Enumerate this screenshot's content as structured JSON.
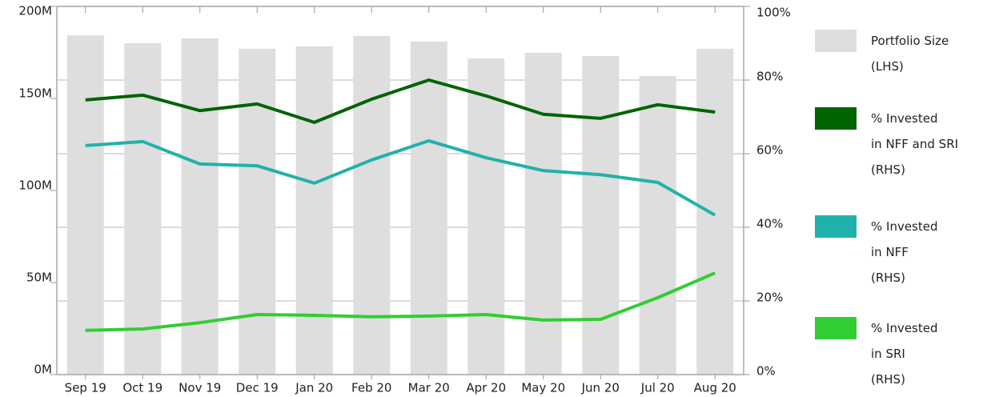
{
  "chart_data": {
    "type": "bar_line",
    "categories": [
      "Sep 19",
      "Oct 19",
      "Nov 19",
      "Dec 19",
      "Jan 20",
      "Feb 20",
      "Mar 20",
      "Apr 20",
      "May 20",
      "Jun 20",
      "Jul 20",
      "Aug 20"
    ],
    "series": [
      {
        "name": "Portfolio Size\n(LHS)",
        "type": "bar",
        "color": "#dedede",
        "values": [
          184.3,
          180,
          182.6,
          177,
          178.3,
          184,
          180.9,
          171.7,
          174.8,
          173,
          162.2,
          177
        ]
      },
      {
        "name": "% Invested\nin NFF and SRI\n(RHS)",
        "type": "line",
        "axis": "y2",
        "color": "#006400",
        "values": [
          74.6,
          75.9,
          71.7,
          73.5,
          68.5,
          74.8,
          80,
          75.7,
          70.7,
          69.6,
          73.3,
          71.3
        ]
      },
      {
        "name": "% Invested\nin NFF\n(RHS)",
        "type": "line",
        "axis": "y2",
        "color": "#20b2aa",
        "values": [
          62.2,
          63.3,
          57.2,
          56.7,
          52,
          58.3,
          63.5,
          58.9,
          55.4,
          54.3,
          52.2,
          43.3
        ]
      },
      {
        "name": "% Invested\nin SRI\n(RHS)",
        "type": "line",
        "axis": "y2",
        "color": "#32cd32",
        "values": [
          12,
          12.4,
          14.1,
          16.3,
          16.1,
          15.7,
          15.9,
          16.3,
          14.8,
          15,
          20.9,
          27.6
        ]
      }
    ],
    "ylim": [
      0,
      200
    ],
    "yticks": [
      {
        "value": 0,
        "label": "0M"
      },
      {
        "value": 50,
        "label": "50M"
      },
      {
        "value": 100,
        "label": "100M"
      },
      {
        "value": 150,
        "label": "150M"
      },
      {
        "value": 200,
        "label": "200M"
      }
    ],
    "y2lim": [
      0,
      100
    ],
    "y2ticks": [
      {
        "value": 0,
        "label": "0%"
      },
      {
        "value": 20,
        "label": "20%"
      },
      {
        "value": 40,
        "label": "40%"
      },
      {
        "value": 60,
        "label": "60%"
      },
      {
        "value": 80,
        "label": "80%"
      },
      {
        "value": 100,
        "label": "100%"
      }
    ],
    "grid": true,
    "legend": "right"
  }
}
